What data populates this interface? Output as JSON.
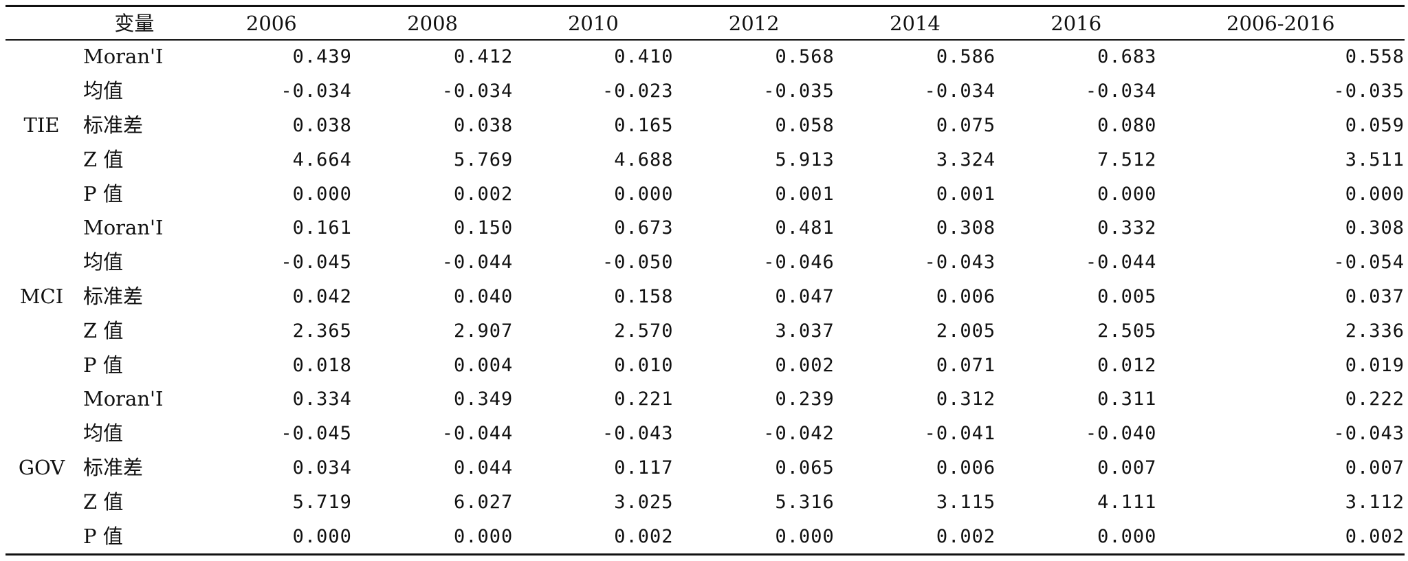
{
  "table": {
    "headers": [
      "",
      "变量",
      "2006",
      "2008",
      "2010",
      "2012",
      "2014",
      "2016",
      "2006-2016"
    ],
    "stat_labels": [
      "Moran'I",
      "均值",
      "标准差",
      "Z 值",
      "P 值"
    ],
    "groups": [
      {
        "name": "TIE",
        "rows": [
          [
            "0.439",
            "0.412",
            "0.410",
            "0.568",
            "0.586",
            "0.683",
            "0.558"
          ],
          [
            "-0.034",
            "-0.034",
            "-0.023",
            "-0.035",
            "-0.034",
            "-0.034",
            "-0.035"
          ],
          [
            "0.038",
            "0.038",
            "0.165",
            "0.058",
            "0.075",
            "0.080",
            "0.059"
          ],
          [
            "4.664",
            "5.769",
            "4.688",
            "5.913",
            "3.324",
            "7.512",
            "3.511"
          ],
          [
            "0.000",
            "0.002",
            "0.000",
            "0.001",
            "0.001",
            "0.000",
            "0.000"
          ]
        ]
      },
      {
        "name": "MCI",
        "rows": [
          [
            "0.161",
            "0.150",
            "0.673",
            "0.481",
            "0.308",
            "0.332",
            "0.308"
          ],
          [
            "-0.045",
            "-0.044",
            "-0.050",
            "-0.046",
            "-0.043",
            "-0.044",
            "-0.054"
          ],
          [
            "0.042",
            "0.040",
            "0.158",
            "0.047",
            "0.006",
            "0.005",
            "0.037"
          ],
          [
            "2.365",
            "2.907",
            "2.570",
            "3.037",
            "2.005",
            "2.505",
            "2.336"
          ],
          [
            "0.018",
            "0.004",
            "0.010",
            "0.002",
            "0.071",
            "0.012",
            "0.019"
          ]
        ]
      },
      {
        "name": "GOV",
        "rows": [
          [
            "0.334",
            "0.349",
            "0.221",
            "0.239",
            "0.312",
            "0.311",
            "0.222"
          ],
          [
            "-0.045",
            "-0.044",
            "-0.043",
            "-0.042",
            "-0.041",
            "-0.040",
            "-0.043"
          ],
          [
            "0.034",
            "0.044",
            "0.117",
            "0.065",
            "0.006",
            "0.007",
            "0.007"
          ],
          [
            "5.719",
            "6.027",
            "3.025",
            "5.316",
            "3.115",
            "4.111",
            "3.112"
          ],
          [
            "0.000",
            "0.000",
            "0.002",
            "0.000",
            "0.002",
            "0.000",
            "0.002"
          ]
        ]
      }
    ]
  }
}
